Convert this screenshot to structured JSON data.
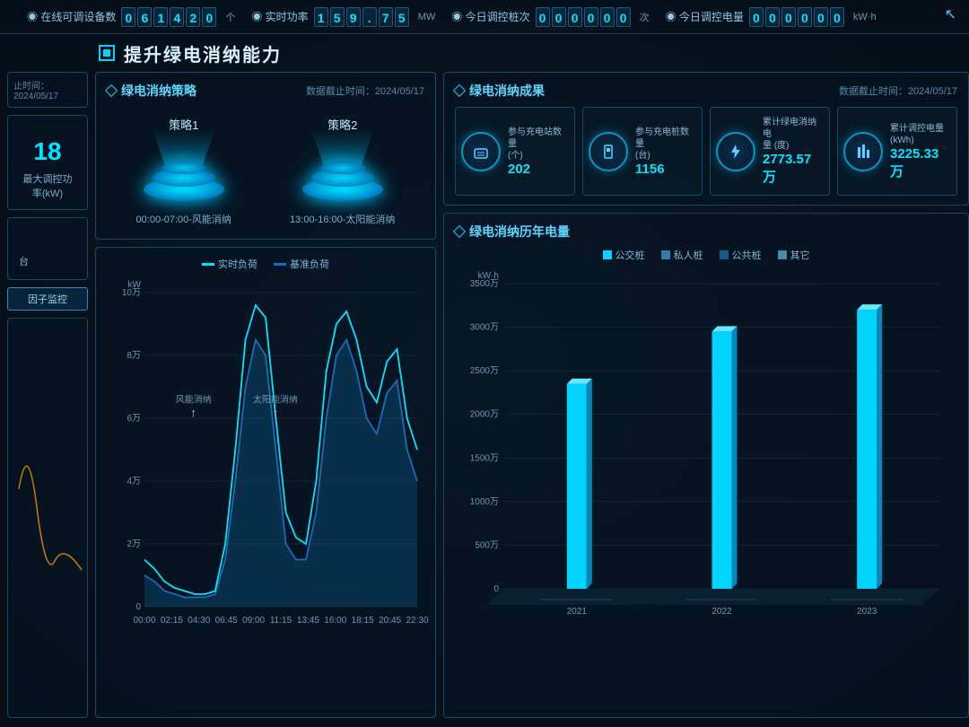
{
  "topbar": {
    "metrics": [
      {
        "label": "在线可调设备数",
        "digits": "061420",
        "unit": "个"
      },
      {
        "label": "实时功率",
        "digits": "159.75",
        "unit": "MW"
      },
      {
        "label": "今日调控桩次",
        "digits": "000000",
        "unit": "次"
      },
      {
        "label": "今日调控电量",
        "digits": "000000",
        "unit": "kW·h"
      }
    ]
  },
  "main_title": "提升绿电消纳能力",
  "left_strip": {
    "timestamp_label": "止时间：",
    "timestamp": "2024/05/17",
    "big_number": "18",
    "big_label": "最大调控功率(kW)",
    "unit_box": "台",
    "factor_btn": "因子监控"
  },
  "strategy_panel": {
    "title": "绿电消纳策略",
    "timestamp_prefix": "数据截止时间：",
    "timestamp": "2024/05/17",
    "strategies": [
      {
        "name": "策略1",
        "desc": "00:00-07:00-风能消纳"
      },
      {
        "name": "策略2",
        "desc": "13:00-16:00-太阳能消纳"
      }
    ]
  },
  "line_chart": {
    "legend": [
      {
        "label": "实时负荷",
        "color": "#00e5ff"
      },
      {
        "label": "基准负荷",
        "color": "#1a6bb8"
      }
    ],
    "y_unit": "kW",
    "y_ticks": [
      "0",
      "2万",
      "4万",
      "6万",
      "8万",
      "10万"
    ],
    "x_ticks": [
      "00:00",
      "02:15",
      "04:30",
      "06:45",
      "09:00",
      "11:15",
      "13:45",
      "16:00",
      "18:15",
      "20:45",
      "22:30"
    ],
    "annotations": [
      {
        "label": "风能消纳",
        "x": 0.18
      },
      {
        "label": "太阳能消纳",
        "x": 0.48
      }
    ],
    "realtime": [
      1.5,
      1.2,
      0.8,
      0.6,
      0.5,
      0.4,
      0.4,
      0.5,
      2.0,
      5.0,
      8.5,
      9.6,
      9.2,
      6.0,
      3.0,
      2.2,
      2.0,
      4.0,
      7.5,
      9.0,
      9.4,
      8.5,
      7.0,
      6.5,
      7.8,
      8.2,
      6.0,
      5.0
    ],
    "baseline": [
      1.0,
      0.8,
      0.5,
      0.4,
      0.3,
      0.3,
      0.3,
      0.4,
      1.5,
      4.0,
      7.0,
      8.5,
      8.0,
      5.0,
      2.0,
      1.5,
      1.5,
      3.0,
      6.0,
      8.0,
      8.5,
      7.5,
      6.0,
      5.5,
      6.8,
      7.2,
      5.0,
      4.0
    ],
    "y_max": 10,
    "colors": {
      "realtime": "#00e5ff",
      "baseline": "#1a6bb8",
      "grid": "#1a3a50",
      "fill": "#0a4a70"
    }
  },
  "results_panel": {
    "title": "绿电消纳成果",
    "timestamp_prefix": "数据截止时间：",
    "timestamp": "2024/05/17",
    "stats": [
      {
        "label": "参与充电站数量\n(个)",
        "value": "202",
        "icon": "station"
      },
      {
        "label": "参与充电桩数量\n(台)",
        "value": "1156",
        "icon": "pile"
      },
      {
        "label": "累计绿电消纳电\n量 (度)",
        "value": "2773.57万",
        "icon": "energy"
      },
      {
        "label": "累计调控电量\n(kWh)",
        "value": "3225.33万",
        "icon": "control"
      }
    ]
  },
  "bar_chart": {
    "title": "绿电消纳历年电量",
    "legend": [
      {
        "label": "公交桩",
        "color": "#00d4ff"
      },
      {
        "label": "私人桩",
        "color": "#3a7aa8"
      },
      {
        "label": "公共桩",
        "color": "#1a5a8a"
      },
      {
        "label": "其它",
        "color": "#4a8ab0"
      }
    ],
    "y_unit": "kW·h",
    "y_ticks": [
      "0",
      "500万",
      "1000万",
      "1500万",
      "2000万",
      "2500万",
      "3000万",
      "3500万"
    ],
    "y_max": 3500,
    "categories": [
      "2021",
      "2022",
      "2023"
    ],
    "values": [
      2350,
      2950,
      3200
    ],
    "bar_color": "#00d4ff",
    "grid_color": "#1a3a50"
  }
}
